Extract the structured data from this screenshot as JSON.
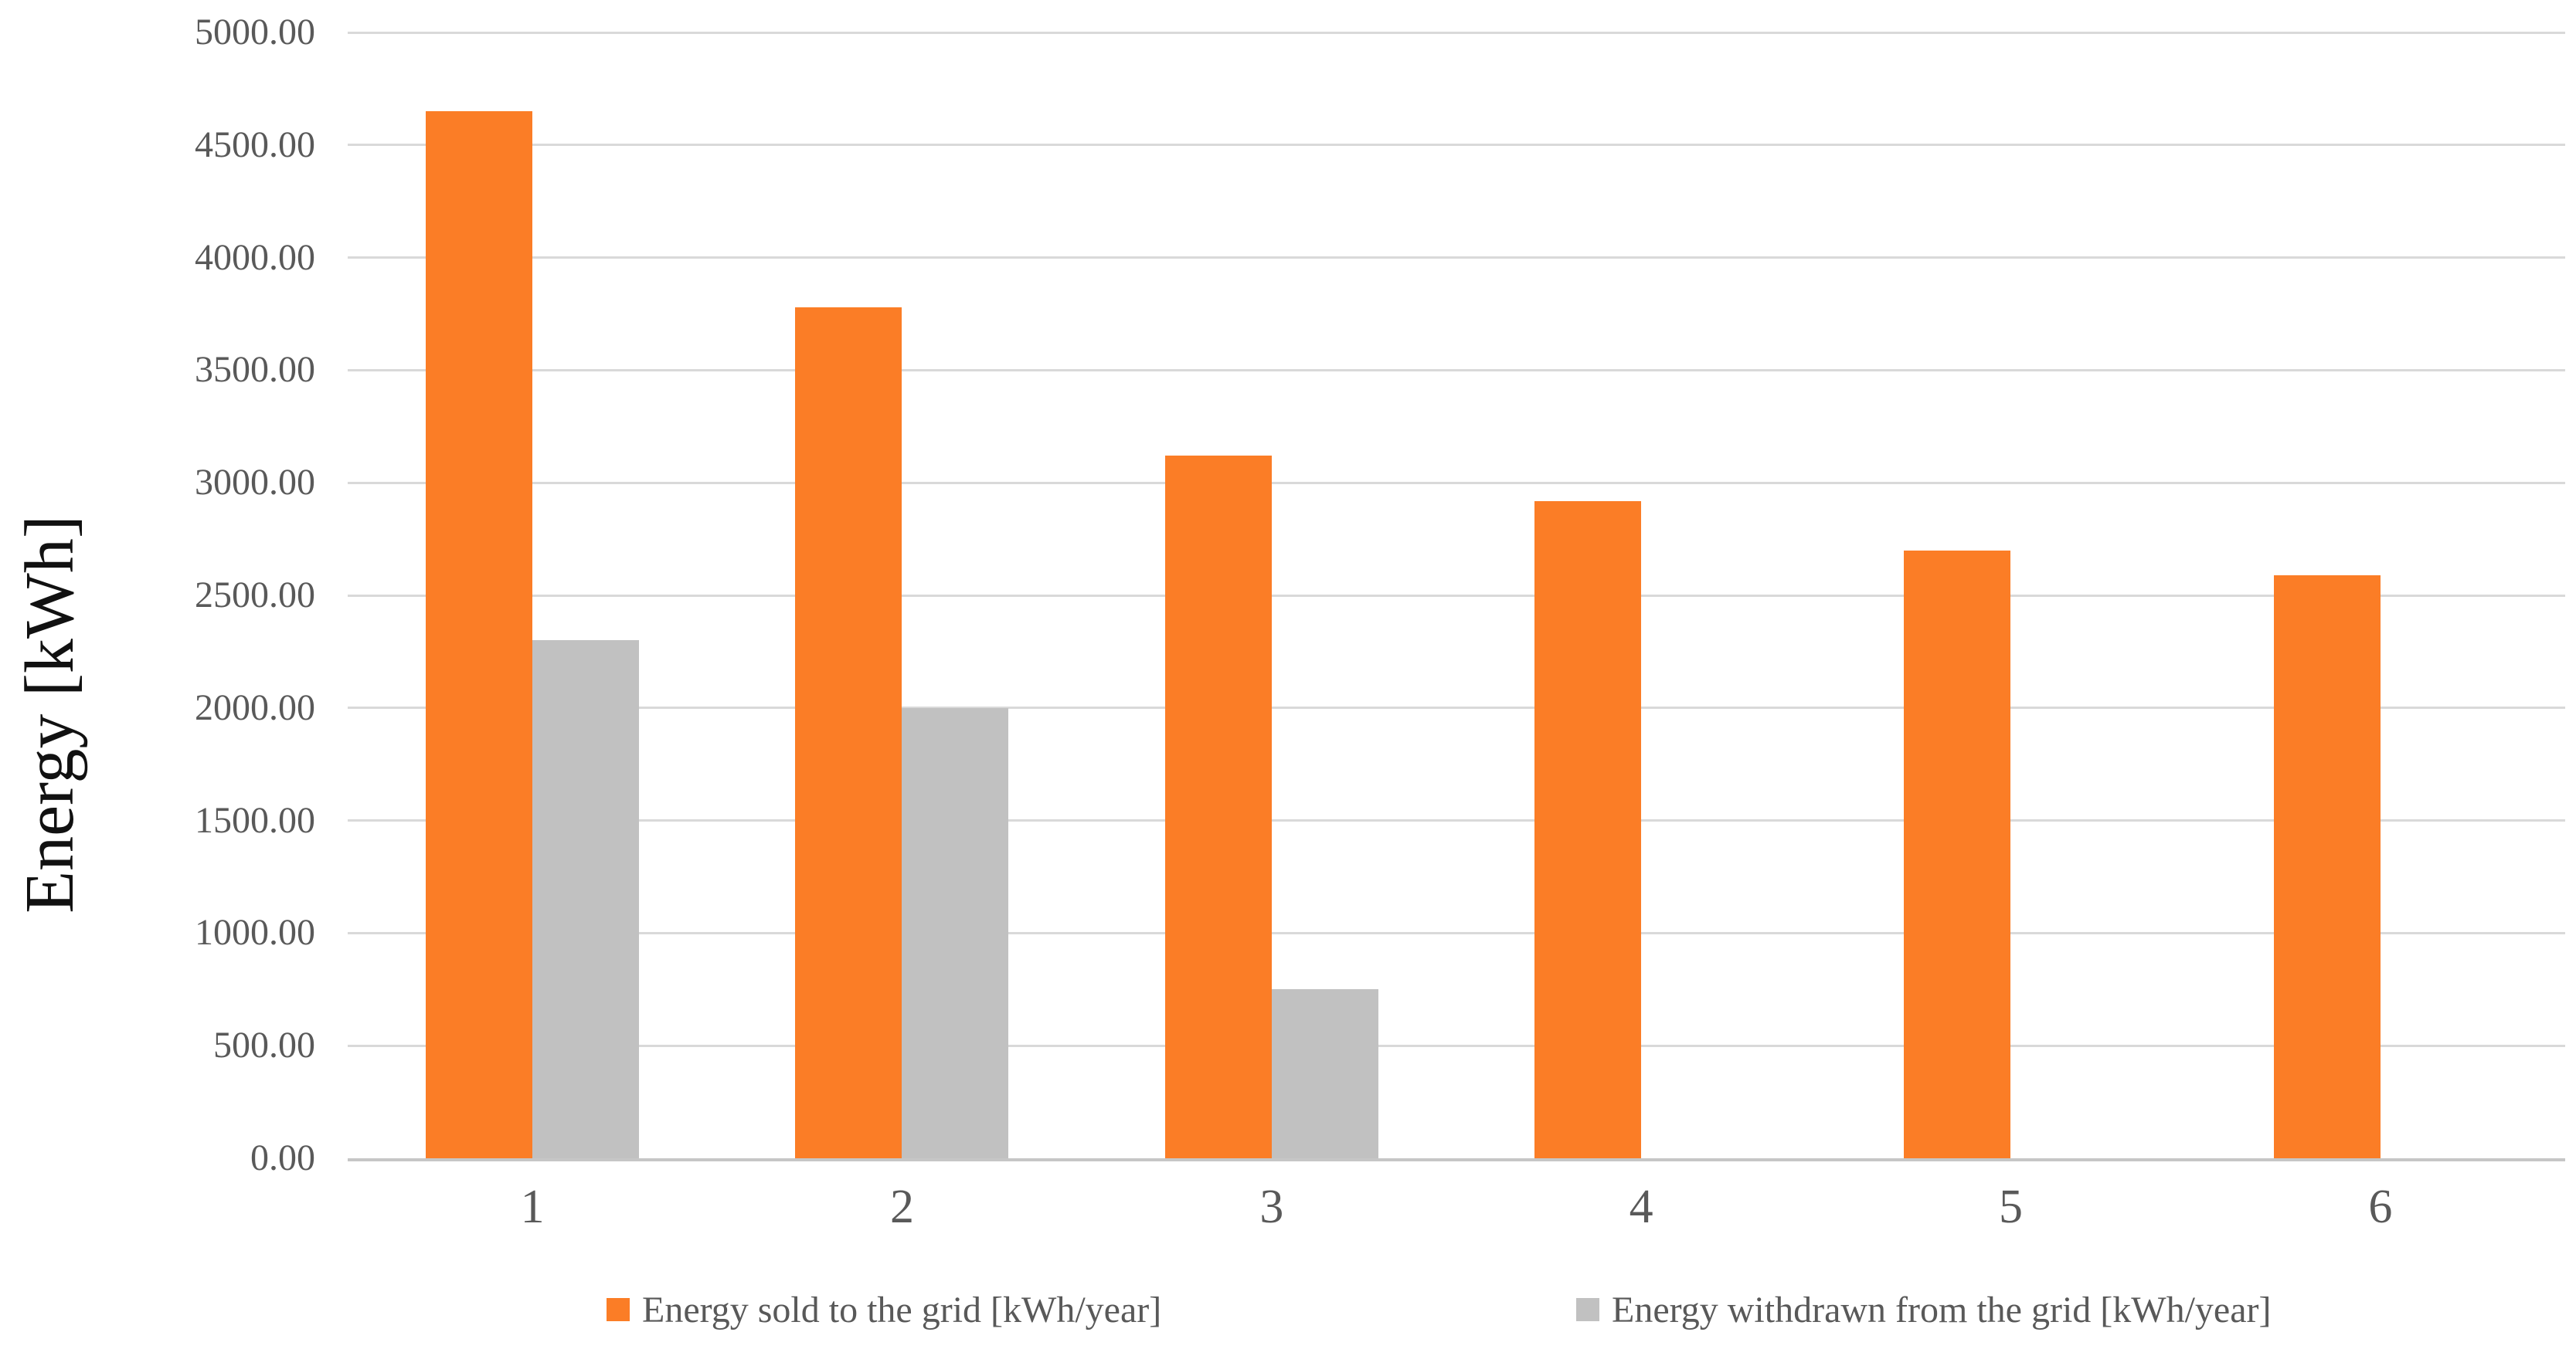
{
  "chart_data": {
    "type": "bar",
    "title": "",
    "xlabel": "",
    "ylabel": "Energy [kWh]",
    "categories": [
      "1",
      "2",
      "3",
      "4",
      "5",
      "6"
    ],
    "series": [
      {
        "name": "Energy sold to the grid [kWh/year]",
        "color": "#FB7D26",
        "values": [
          4650,
          3780,
          3120,
          2920,
          2700,
          2590
        ]
      },
      {
        "name": "Energy withdrawn from the grid [kWh/year]",
        "color": "#C1C1C1",
        "values": [
          2300,
          2000,
          750,
          0,
          0,
          0
        ]
      }
    ],
    "ylim": [
      0,
      5000
    ],
    "ytick_step": 500,
    "ytick_labels": [
      "0.00",
      "500.00",
      "1000.00",
      "1500.00",
      "2000.00",
      "2500.00",
      "3000.00",
      "3500.00",
      "4000.00",
      "4500.00",
      "5000.00"
    ],
    "grid": true,
    "legend_position": "bottom",
    "colors": {
      "gridline": "#d9d9d9",
      "axis_line": "#c6c6c6",
      "tick_text": "#595959",
      "axis_title_text": "#111111",
      "background": "#ffffff"
    }
  }
}
